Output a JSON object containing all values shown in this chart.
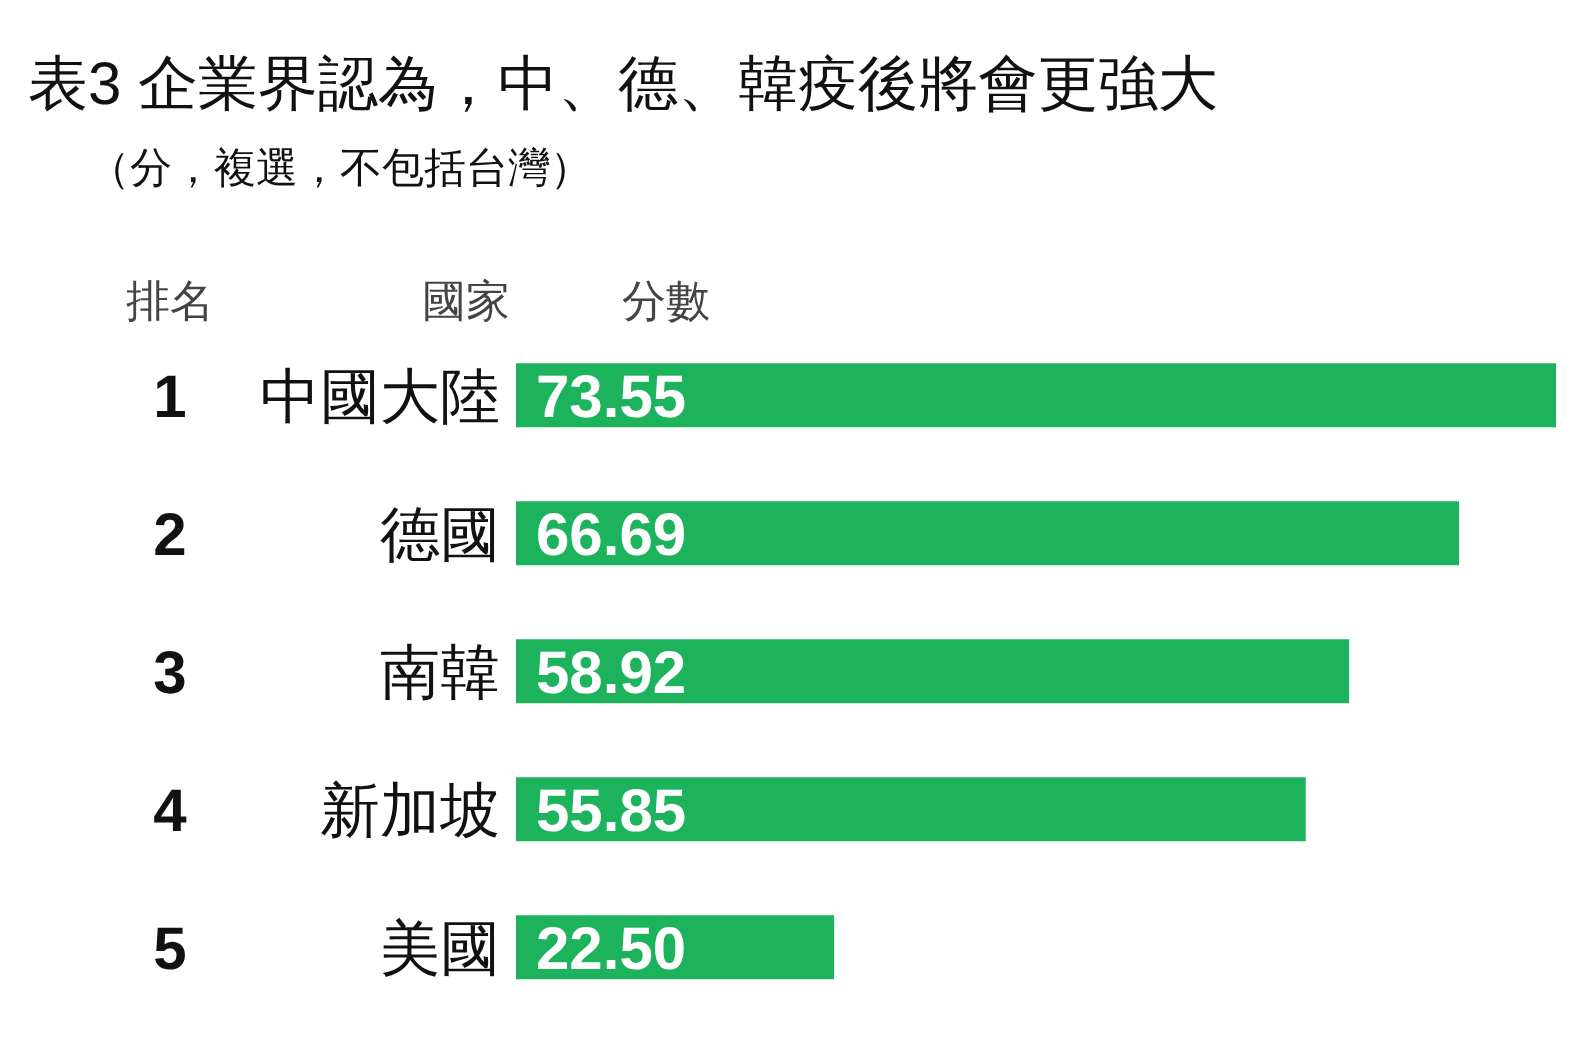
{
  "chart_data": {
    "type": "bar",
    "orientation": "horizontal",
    "title": "表3 企業界認為，中、德、韓疫後將會更強大",
    "subtitle": "（分，複選，不包括台灣）",
    "categories": [
      "中國大陸",
      "德國",
      "南韓",
      "新加坡",
      "美國"
    ],
    "values": [
      73.55,
      66.69,
      58.92,
      55.85,
      22.5
    ],
    "value_labels": [
      "73.55",
      "66.69",
      "58.92",
      "55.85",
      "22.50"
    ],
    "color": "#1db35c",
    "annotations": [
      "排名",
      "國家",
      "分數",
      "1",
      "2",
      "3",
      "4",
      "5"
    ]
  }
}
